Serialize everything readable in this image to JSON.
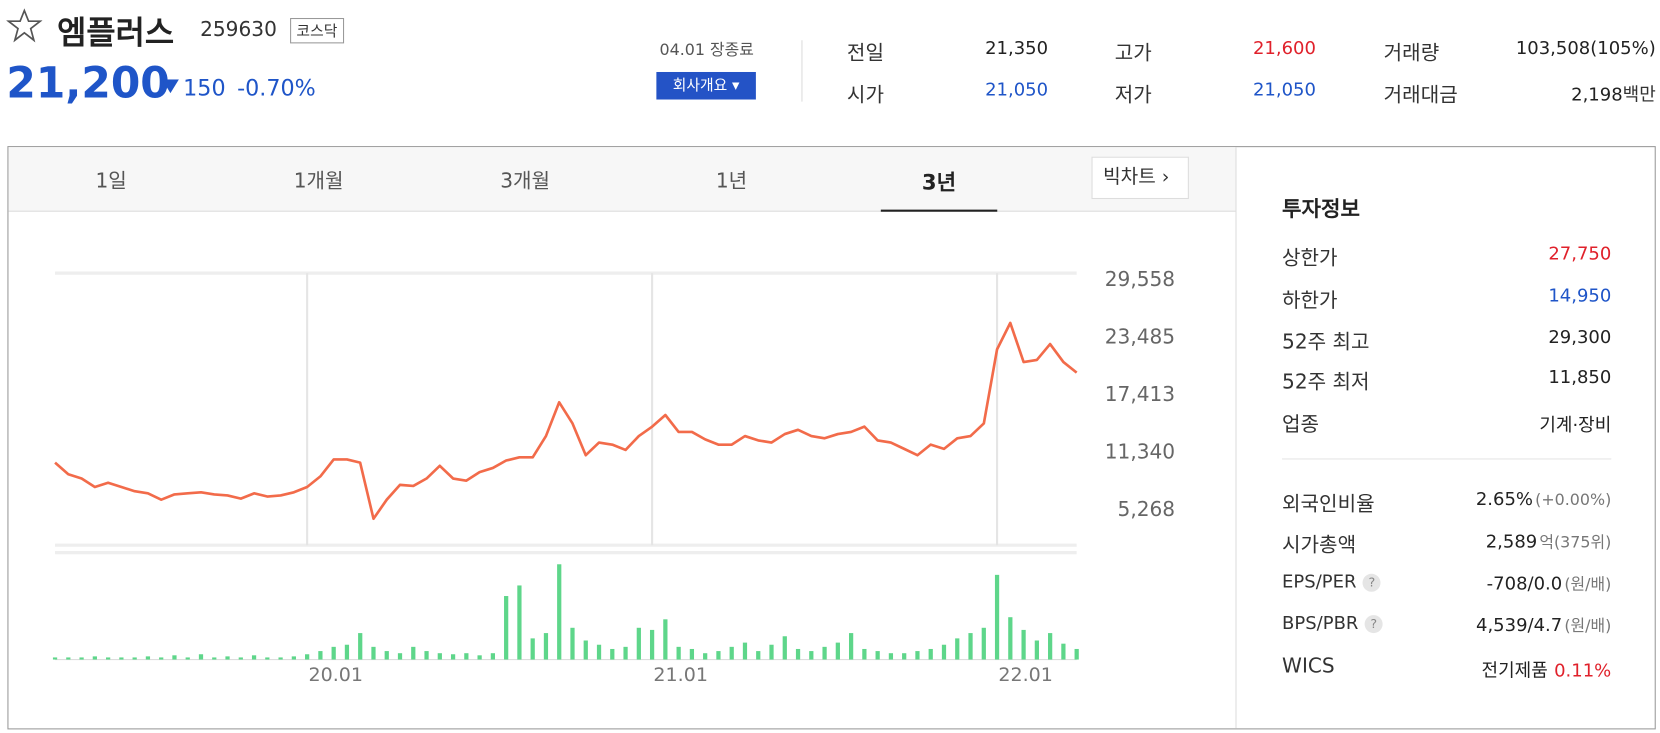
{
  "header": {
    "name": "엠플러스",
    "code": "259630",
    "market": "코스닥",
    "price": "21,200",
    "change": "150",
    "change_pct": "-0.70%",
    "time": "04.01 장종료",
    "company_button": "회사개요"
  },
  "summary": [
    {
      "label": "전일",
      "value": "21,350"
    },
    {
      "label": "고가",
      "value": "21,600"
    },
    {
      "label": "거래량",
      "value": "103,508(105%)"
    },
    {
      "label": "시가",
      "value": "21,050"
    },
    {
      "label": "저가",
      "value": "21,050"
    },
    {
      "label": "거래대금",
      "value": "2,198",
      "unit": "백만"
    }
  ],
  "tabs": {
    "items": [
      "1일",
      "1개월",
      "3개월",
      "1년",
      "3년"
    ],
    "big_chart": "빅차트"
  },
  "invest": {
    "title": "투자정보",
    "rows": [
      {
        "label": "상한가",
        "value": "27,750"
      },
      {
        "label": "하한가",
        "value": "14,950"
      },
      {
        "label": "52주 최고",
        "value": "29,300"
      },
      {
        "label": "52주 최저",
        "value": "11,850"
      },
      {
        "label": "업종",
        "value": "기계·장비"
      }
    ],
    "rows2": [
      {
        "label": "외국인비율",
        "value": "2.65%",
        "extra": "(+0.00%)"
      },
      {
        "label": "시가총액",
        "value": "2,589",
        "extra": "억(375위)"
      },
      {
        "label": "EPS/PER",
        "help": "?",
        "value": "-708/0.0",
        "extra": "(원/배)"
      },
      {
        "label": "BPS/PBR",
        "help": "?",
        "value": "4,539/4.7",
        "extra": "(원/배)"
      },
      {
        "label": "WICS",
        "value": "전기제품",
        "extra": "0.11%"
      }
    ]
  },
  "chart_data": {
    "type": "line",
    "categories": [
      null,
      null,
      null,
      null,
      null,
      null,
      null,
      null,
      null,
      null,
      null,
      null,
      null,
      null,
      null,
      null,
      null,
      null,
      null,
      "20.01",
      null,
      null,
      null,
      null,
      null,
      null,
      null,
      null,
      null,
      null,
      null,
      null,
      null,
      null,
      null,
      null,
      null,
      null,
      null,
      null,
      null,
      null,
      null,
      null,
      null,
      "21.01",
      null,
      null,
      null,
      null,
      null,
      null,
      null,
      null,
      null,
      null,
      null,
      null,
      null,
      null,
      null,
      null,
      null,
      null,
      null,
      null,
      null,
      null,
      null,
      null,
      null,
      "22.01",
      null,
      null,
      null,
      null,
      null,
      null
    ],
    "series": [
      {
        "color": "#f26b4a",
        "values": [
          10300,
          9070,
          8620,
          7730,
          8180,
          7730,
          7280,
          7060,
          6390,
          6950,
          7060,
          7170,
          6950,
          6830,
          6500,
          7060,
          6720,
          6830,
          7170,
          7730,
          8850,
          10640,
          10640,
          10300,
          4370,
          6390,
          7950,
          7840,
          8620,
          9960,
          8620,
          8400,
          9290,
          9740,
          10520,
          10860,
          10860,
          13100,
          16670,
          14440,
          11080,
          12420,
          12200,
          11640,
          13100,
          14100,
          15330,
          13540,
          13540,
          12760,
          12200,
          12200,
          13100,
          12650,
          12420,
          13320,
          13760,
          13100,
          12870,
          13320,
          13540,
          14100,
          12650,
          12420,
          11750,
          11080,
          12200,
          11750,
          12870,
          13100,
          14440,
          22260,
          25060,
          20920,
          21140,
          22820,
          20920,
          19800
        ]
      },
      {
        "color": "#5ed68a",
        "type": "bar",
        "axis": "y2",
        "values": [
          2,
          2,
          2,
          3,
          2,
          2,
          2,
          3,
          2,
          4,
          2,
          5,
          2,
          3,
          2,
          4,
          2,
          2,
          3,
          5,
          8,
          12,
          14,
          25,
          12,
          8,
          6,
          12,
          8,
          6,
          5,
          6,
          4,
          6,
          60,
          70,
          20,
          25,
          90,
          30,
          18,
          14,
          10,
          12,
          30,
          28,
          38,
          12,
          10,
          6,
          8,
          12,
          16,
          8,
          14,
          22,
          10,
          8,
          12,
          16,
          25,
          10,
          8,
          6,
          6,
          8,
          10,
          14,
          20,
          25,
          30,
          80,
          40,
          28,
          18,
          25,
          15,
          10
        ]
      }
    ],
    "ylim": [
      1580,
      30310
    ],
    "yticks": [
      {
        "value": 29558,
        "label": "29,558"
      },
      {
        "value": 23485,
        "label": "23,485"
      },
      {
        "value": 17413,
        "label": "17,413"
      },
      {
        "value": 11340,
        "label": "11,340"
      },
      {
        "value": 5268,
        "label": "5,268"
      }
    ],
    "y2lim": [
      0,
      100
    ],
    "xgrid": true,
    "ygrid": false
  }
}
